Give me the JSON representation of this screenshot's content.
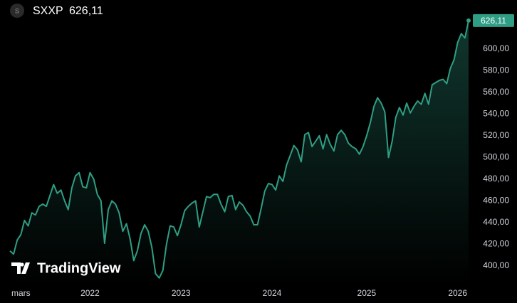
{
  "chart_data": {
    "type": "line",
    "title": "SXXP",
    "logo_letter": "S",
    "last_price_label": "626,11",
    "watermark": "TradingView",
    "categories": [
      null,
      null,
      null,
      "mars",
      null,
      null,
      null,
      null,
      null,
      null,
      null,
      null,
      null,
      null,
      null,
      null,
      null,
      null,
      null,
      null,
      null,
      null,
      "2022",
      null,
      null,
      null,
      null,
      null,
      null,
      null,
      null,
      null,
      null,
      null,
      null,
      null,
      null,
      null,
      null,
      null,
      null,
      null,
      null,
      null,
      null,
      null,
      null,
      "2023",
      null,
      null,
      null,
      null,
      null,
      null,
      null,
      null,
      null,
      null,
      null,
      null,
      null,
      null,
      null,
      null,
      null,
      null,
      null,
      null,
      null,
      null,
      null,
      null,
      "2024",
      null,
      null,
      null,
      null,
      null,
      null,
      null,
      null,
      null,
      null,
      null,
      null,
      null,
      null,
      null,
      null,
      null,
      null,
      null,
      null,
      null,
      null,
      null,
      null,
      null,
      "2025",
      null,
      null,
      null,
      null,
      null,
      null,
      null,
      null,
      null,
      null,
      null,
      null,
      null,
      null,
      null,
      null,
      null,
      null,
      null,
      null,
      null,
      null,
      null,
      null,
      "2026",
      null,
      null,
      null
    ],
    "series": [
      {
        "name": "SXXP",
        "color": "#2f9e84",
        "values": [
          414,
          411,
          424,
          429,
          442,
          437,
          449,
          447,
          455,
          457,
          455,
          465,
          475,
          467,
          470,
          460,
          452,
          472,
          483,
          486,
          473,
          472,
          486,
          480,
          466,
          460,
          421,
          452,
          460,
          457,
          449,
          432,
          439,
          425,
          405,
          414,
          430,
          438,
          432,
          417,
          393,
          389,
          396,
          420,
          437,
          436,
          428,
          438,
          451,
          455,
          458,
          460,
          436,
          450,
          464,
          463,
          466,
          466,
          457,
          450,
          464,
          465,
          452,
          459,
          456,
          450,
          446,
          438,
          438,
          453,
          469,
          476,
          475,
          470,
          483,
          478,
          493,
          502,
          511,
          507,
          496,
          521,
          523,
          510,
          515,
          520,
          508,
          521,
          512,
          506,
          521,
          525,
          521,
          513,
          510,
          508,
          503,
          510,
          520,
          532,
          547,
          555,
          550,
          542,
          500,
          515,
          537,
          546,
          539,
          550,
          541,
          547,
          552,
          549,
          559,
          549,
          567,
          569,
          571,
          572,
          568,
          582,
          590,
          606,
          614,
          610,
          626.11
        ]
      }
    ],
    "ylim": [
      383,
      645
    ],
    "yticks": [
      {
        "value": 400,
        "label": "400,00"
      },
      {
        "value": 420,
        "label": "420,00"
      },
      {
        "value": 440,
        "label": "440,00"
      },
      {
        "value": 460,
        "label": "460,00"
      },
      {
        "value": 480,
        "label": "480,00"
      },
      {
        "value": 500,
        "label": "500,00"
      },
      {
        "value": 520,
        "label": "520,00"
      },
      {
        "value": 540,
        "label": "540,00"
      },
      {
        "value": 560,
        "label": "560,00"
      },
      {
        "value": 580,
        "label": "580,00"
      },
      {
        "value": 600,
        "label": "600,00"
      }
    ],
    "grid": false
  }
}
